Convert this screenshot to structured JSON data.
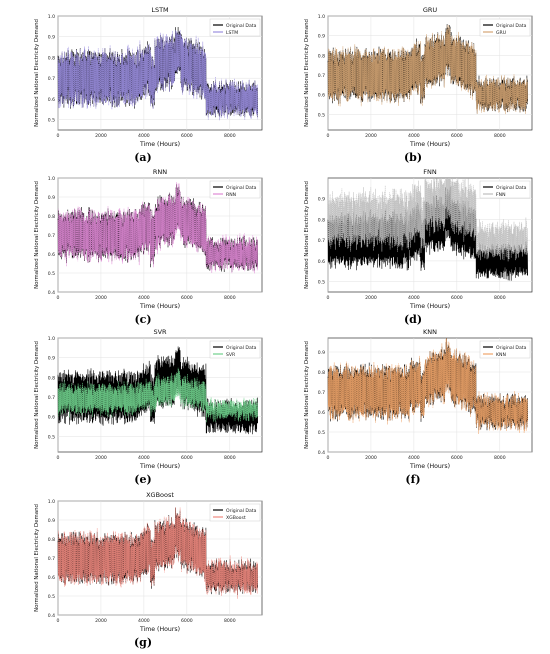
{
  "figure": {
    "panels": [
      {
        "caption": "(a)",
        "title": "LSTM",
        "ylabel": "Normalized National Electricity Demand",
        "xlabel": "Time (Hours)",
        "legend": [
          "Original Data",
          "LSTM"
        ],
        "prediction_color": "#9b8fe0",
        "prediction_quality": "close"
      },
      {
        "caption": "(b)",
        "title": "GRU",
        "ylabel": "Normalized National Electricity Demand",
        "xlabel": "Time (Hours)",
        "legend": [
          "Original Data",
          "GRU"
        ],
        "prediction_color": "#d4a574",
        "prediction_quality": "close"
      },
      {
        "caption": "(c)",
        "title": "RNN",
        "ylabel": "Normalized National Electricity Demand",
        "xlabel": "Time (Hours)",
        "legend": [
          "Original Data",
          "RNN"
        ],
        "prediction_color": "#e08ad6",
        "prediction_quality": "close"
      },
      {
        "caption": "(d)",
        "title": "FNN",
        "ylabel": "Normalized National Electricity Demand",
        "xlabel": "Time (Hours)",
        "legend": [
          "Original Data",
          "FNN"
        ],
        "prediction_color": "#bdbdbd",
        "prediction_quality": "offset"
      },
      {
        "caption": "(e)",
        "title": "SVR",
        "ylabel": "Normalized National Electricity Demand",
        "xlabel": "Time (Hours)",
        "legend": [
          "Original Data",
          "SVR"
        ],
        "prediction_color": "#6fd08c",
        "prediction_quality": "damped"
      },
      {
        "caption": "(f)",
        "title": "KNN",
        "ylabel": "Normalized National Electricity Demand",
        "xlabel": "Time (Hours)",
        "legend": [
          "Original Data",
          "KNN"
        ],
        "prediction_color": "#f0a56a",
        "prediction_quality": "close"
      },
      {
        "caption": "(g)",
        "title": "XGBoost",
        "ylabel": "Normalized National Electricity Demand",
        "xlabel": "Time (Hours)",
        "legend": [
          "Original Data",
          "XGBoost"
        ],
        "prediction_color": "#f08a80",
        "prediction_quality": "close"
      }
    ]
  },
  "chart_data": [
    {
      "type": "line",
      "title": "LSTM",
      "xlabel": "Time (Hours)",
      "ylabel": "Normalized National Electricity Demand",
      "xlim": [
        0,
        9500
      ],
      "ylim": [
        0.45,
        1.0
      ],
      "xticks": [
        0,
        2000,
        4000,
        6000,
        8000
      ],
      "yticks": [
        0.5,
        0.6,
        0.7,
        0.8,
        0.9,
        1.0
      ],
      "series": [
        {
          "name": "Original Data",
          "color": "#000000"
        },
        {
          "name": "LSTM",
          "color": "#9b8fe0"
        }
      ],
      "legend": "top-right",
      "grid": true
    },
    {
      "type": "line",
      "title": "GRU",
      "xlabel": "Time (Hours)",
      "ylabel": "Normalized National Electricity Demand",
      "xlim": [
        0,
        9500
      ],
      "ylim": [
        0.42,
        1.0
      ],
      "xticks": [
        0,
        2000,
        4000,
        6000,
        8000
      ],
      "yticks": [
        0.5,
        0.6,
        0.7,
        0.8,
        0.9,
        1.0
      ],
      "series": [
        {
          "name": "Original Data",
          "color": "#000000"
        },
        {
          "name": "GRU",
          "color": "#d4a574"
        }
      ],
      "legend": "top-right",
      "grid": true
    },
    {
      "type": "line",
      "title": "RNN",
      "xlabel": "Time (Hours)",
      "ylabel": "Normalized National Electricity Demand",
      "xlim": [
        0,
        9500
      ],
      "ylim": [
        0.4,
        1.0
      ],
      "xticks": [
        0,
        2000,
        4000,
        6000,
        8000
      ],
      "yticks": [
        0.4,
        0.5,
        0.6,
        0.7,
        0.8,
        0.9,
        1.0
      ],
      "series": [
        {
          "name": "Original Data",
          "color": "#000000"
        },
        {
          "name": "RNN",
          "color": "#e08ad6"
        }
      ],
      "legend": "top-right",
      "grid": true
    },
    {
      "type": "line",
      "title": "FNN",
      "xlabel": "Time (Hours)",
      "ylabel": "Normalized National Electricity Demand",
      "xlim": [
        0,
        9500
      ],
      "ylim": [
        0.45,
        1.0
      ],
      "xticks": [
        0,
        2000,
        4000,
        6000,
        8000
      ],
      "yticks": [
        0.5,
        0.6,
        0.7,
        0.8,
        0.9
      ],
      "series": [
        {
          "name": "Original Data",
          "color": "#000000"
        },
        {
          "name": "FNN",
          "color": "#bdbdbd"
        }
      ],
      "legend": "top-right",
      "grid": true
    },
    {
      "type": "line",
      "title": "SVR",
      "xlabel": "Time (Hours)",
      "ylabel": "Normalized National Electricity Demand",
      "xlim": [
        0,
        9500
      ],
      "ylim": [
        0.42,
        1.0
      ],
      "xticks": [
        0,
        2000,
        4000,
        6000,
        8000
      ],
      "yticks": [
        0.5,
        0.6,
        0.7,
        0.8,
        0.9,
        1.0
      ],
      "series": [
        {
          "name": "Original Data",
          "color": "#000000"
        },
        {
          "name": "SVR",
          "color": "#6fd08c"
        }
      ],
      "legend": "top-right",
      "grid": true
    },
    {
      "type": "line",
      "title": "KNN",
      "xlabel": "Time (Hours)",
      "ylabel": "Normalized National Electricity Demand",
      "xlim": [
        0,
        9500
      ],
      "ylim": [
        0.4,
        0.97
      ],
      "xticks": [
        0,
        2000,
        4000,
        6000,
        8000
      ],
      "yticks": [
        0.4,
        0.5,
        0.6,
        0.7,
        0.8,
        0.9
      ],
      "series": [
        {
          "name": "Original Data",
          "color": "#000000"
        },
        {
          "name": "KNN",
          "color": "#f0a56a"
        }
      ],
      "legend": "top-right",
      "grid": true
    },
    {
      "type": "line",
      "title": "XGBoost",
      "xlabel": "Time (Hours)",
      "ylabel": "Normalized National Electricity Demand",
      "xlim": [
        0,
        9500
      ],
      "ylim": [
        0.4,
        1.0
      ],
      "xticks": [
        0,
        2000,
        4000,
        6000,
        8000
      ],
      "yticks": [
        0.4,
        0.5,
        0.6,
        0.7,
        0.8,
        0.9,
        1.0
      ],
      "series": [
        {
          "name": "Original Data",
          "color": "#000000"
        },
        {
          "name": "XGBoost",
          "color": "#f08a80"
        }
      ],
      "legend": "top-right",
      "grid": true
    }
  ]
}
